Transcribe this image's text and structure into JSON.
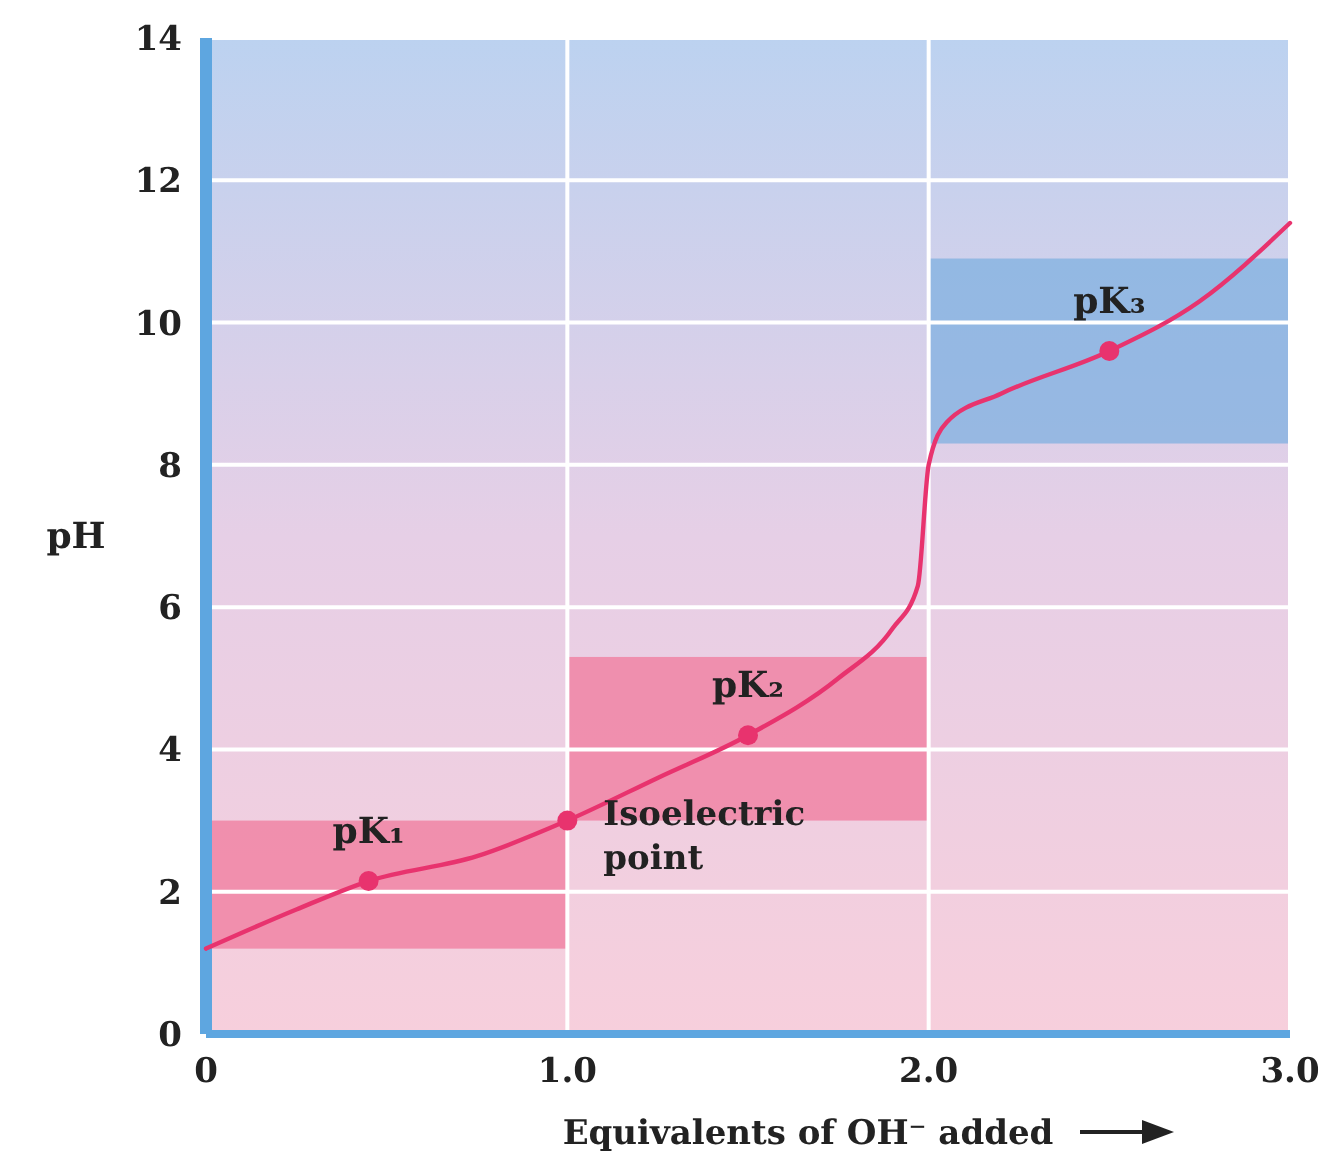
{
  "chart_data": {
    "type": "line",
    "xlabel": "Equivalents of OH⁻ added",
    "ylabel": "pH",
    "x": [
      0,
      0.25,
      0.45,
      0.75,
      1.0,
      1.25,
      1.5,
      1.75,
      1.9,
      1.97,
      2.0,
      2.05,
      2.2,
      2.5,
      2.75,
      3.0
    ],
    "series": [
      {
        "type": "bar",
        "x": [
          0.5,
          1.5,
          2.5
        ],
        "base": [
          1.2,
          3.0,
          8.3
        ],
        "values": [
          1.8,
          2.3,
          2.6
        ],
        "colors": [
          "#f07a9c",
          "#f07a9c",
          "#7fb0e0"
        ]
      },
      {
        "color": "#e8336e",
        "values": [
          1.2,
          1.75,
          2.15,
          2.5,
          3.0,
          3.6,
          4.2,
          5.0,
          5.7,
          6.3,
          8.0,
          8.6,
          9.0,
          9.6,
          10.3,
          11.4
        ]
      }
    ],
    "xlim": [
      0,
      3
    ],
    "xticks": [
      0,
      {
        "value": 1,
        "label": "1.0"
      },
      {
        "value": 2,
        "label": "2.0"
      },
      {
        "value": 3,
        "label": "3.0"
      }
    ],
    "ylim": [
      0,
      14
    ],
    "yticks": [
      0,
      2,
      4,
      6,
      8,
      10,
      12,
      14
    ],
    "grid": true,
    "marker": "none",
    "line_style": "solid",
    "annotations": [
      {
        "text": "pK₁",
        "x": 0.45,
        "y": 2.15
      },
      {
        "text": "Isoelectric point",
        "x": 1.0,
        "y": 3.0
      },
      {
        "text": "pK₂",
        "x": 1.5,
        "y": 4.2
      },
      {
        "text": "pK₃",
        "x": 2.5,
        "y": 9.6
      }
    ]
  }
}
